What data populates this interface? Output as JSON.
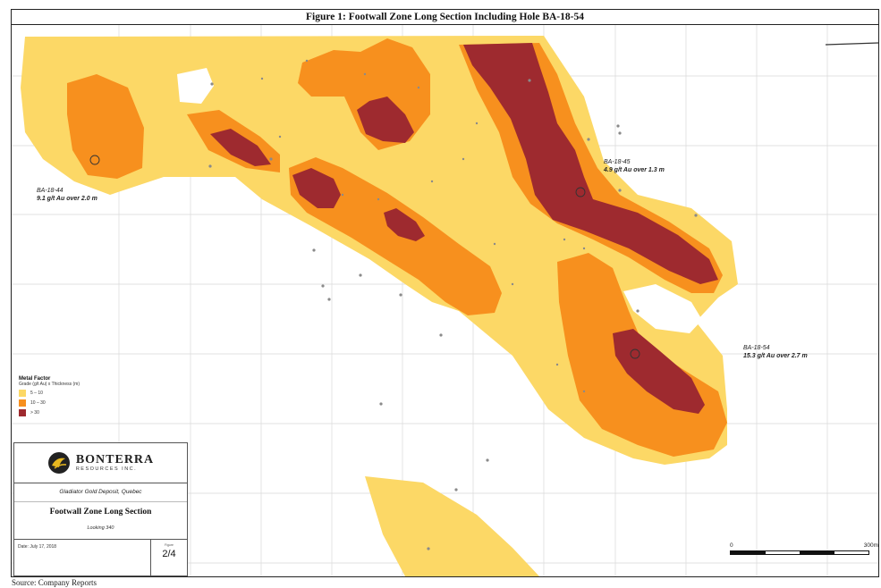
{
  "figure_title": "Figure 1:  Footwall Zone Long Section Including Hole BA-18-54",
  "map_labels": [
    {
      "hole": "BA-18-44",
      "intercept": "9.1 g/t Au over 2.0 m"
    },
    {
      "hole": "BA-18-45",
      "intercept": "4.9 g/t Au over 1.3 m"
    },
    {
      "hole": "BA-18-54",
      "intercept": "15.3 g/t Au over 2.7 m"
    }
  ],
  "legend": {
    "title": "Metal Factor",
    "subtitle": "Grade (g/t Au) x Thickness (m)",
    "items": [
      {
        "label": "5 – 10",
        "color": "#fcd866"
      },
      {
        "label": "10 – 30",
        "color": "#f7901e"
      },
      {
        "label": "> 30",
        "color": "#9e2a2f"
      }
    ]
  },
  "title_block": {
    "brand": "BONTERRA",
    "brand_sub": "RESOURCES INC.",
    "deposit": "Gladiator Gold Deposit, Quebec",
    "section_title": "Footwall Zone Long Section",
    "looking": "Looking 340",
    "date": "Date: July 17, 2018",
    "figure_label": "Figure",
    "figure_value": "2/4"
  },
  "scale_bar": {
    "start": "0",
    "end": "300m"
  },
  "source_note": "Source: Company Reports",
  "colors": {
    "low": "#fcd866",
    "mid": "#f7901e",
    "high": "#9e2a2f",
    "grid": "#d8d8d8",
    "drill_point": "#8a8a8a"
  }
}
